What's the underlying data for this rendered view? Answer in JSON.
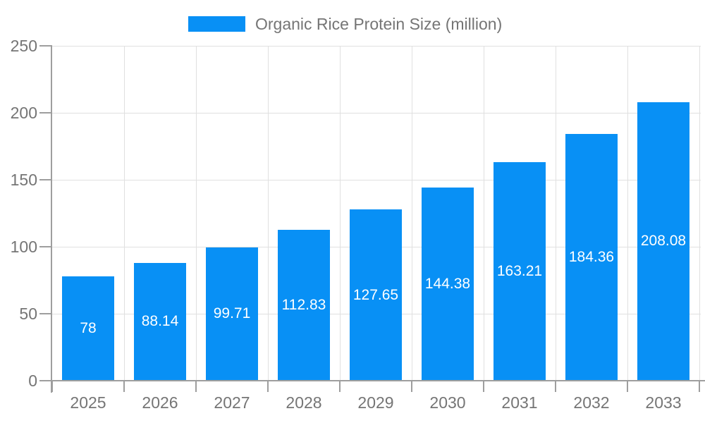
{
  "legend": {
    "label": "Organic Rice Protein Size (million)"
  },
  "chart_data": {
    "type": "bar",
    "title": "Organic Rice Protein Size (million)",
    "categories": [
      "2025",
      "2026",
      "2027",
      "2028",
      "2029",
      "2030",
      "2031",
      "2032",
      "2033"
    ],
    "values": [
      78,
      88.14,
      99.71,
      112.83,
      127.65,
      144.38,
      163.21,
      184.36,
      208.08
    ],
    "value_labels": [
      "78",
      "88.14",
      "99.71",
      "112.83",
      "127.65",
      "144.38",
      "163.21",
      "184.36",
      "208.08"
    ],
    "xlabel": "",
    "ylabel": "",
    "ylim": [
      0,
      250
    ],
    "y_ticks": [
      0,
      50,
      100,
      150,
      200,
      250
    ],
    "grid": true,
    "legend_position": "top",
    "value_labels_position": "center-inside",
    "colors": {
      "bar": "#0890f5",
      "grid": "#e0e0e0",
      "axis": "#9e9e9e",
      "tick_label": "#757575",
      "legend_text": "#757575",
      "value_label": "#ffffff"
    }
  }
}
